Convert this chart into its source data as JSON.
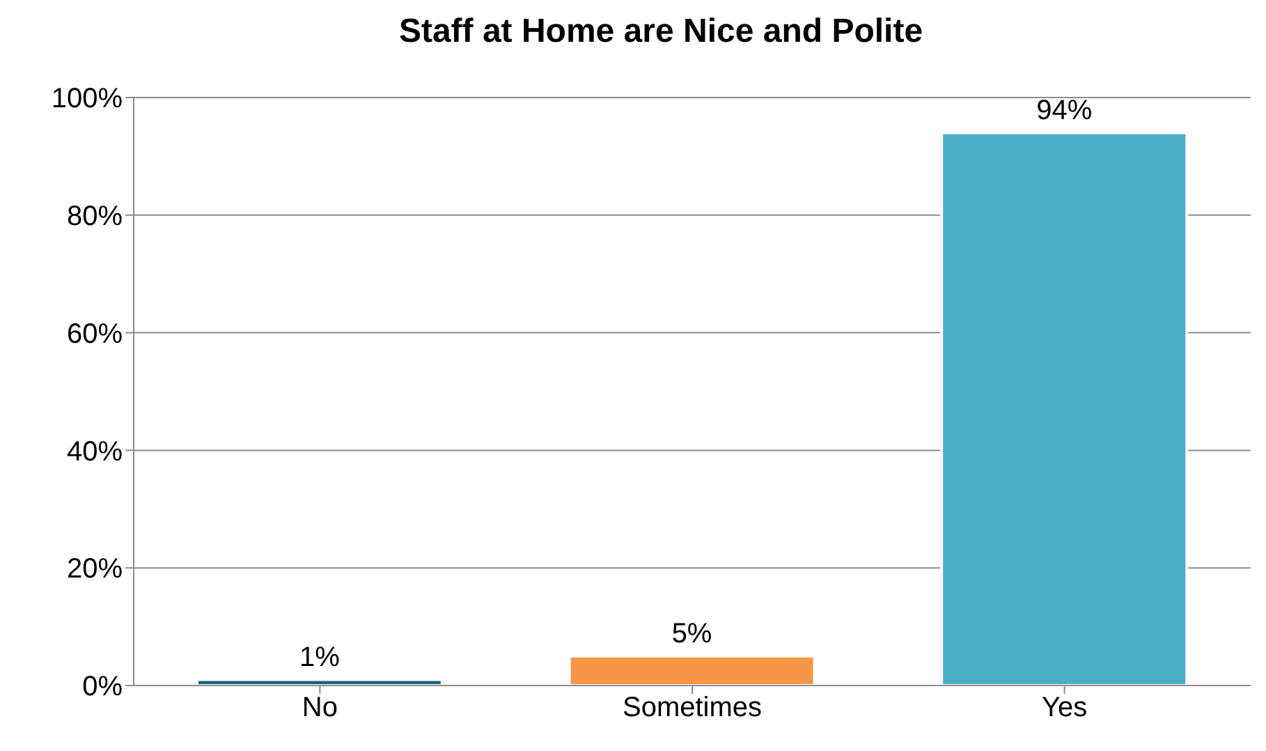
{
  "chart_data": {
    "type": "bar",
    "title": "Staff at Home are Nice and Polite",
    "categories": [
      "No",
      "Sometimes",
      "Yes"
    ],
    "values": [
      1,
      5,
      94
    ],
    "colors": [
      "#215f78",
      "#f79646",
      "#4bacc6"
    ],
    "value_labels": [
      "1%",
      "5%",
      "94%"
    ],
    "ylim": [
      0,
      100
    ],
    "yticks": [
      {
        "value": 0,
        "label": "0%"
      },
      {
        "value": 20,
        "label": "20%"
      },
      {
        "value": 40,
        "label": "40%"
      },
      {
        "value": 60,
        "label": "60%"
      },
      {
        "value": 80,
        "label": "80%"
      },
      {
        "value": 100,
        "label": "100%"
      }
    ],
    "grid": "y"
  }
}
